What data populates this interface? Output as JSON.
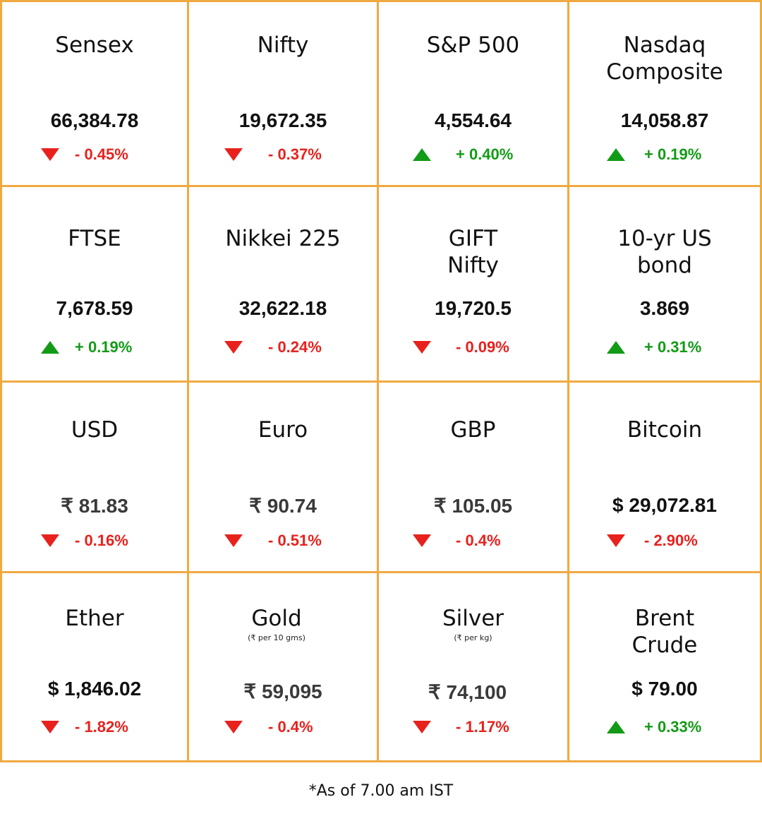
{
  "colors": {
    "border": "#f0a941",
    "down": "#e8211d",
    "up": "#129b16"
  },
  "tiles": [
    {
      "title": "Sensex",
      "value": "66,384.78",
      "change": "- 0.45%",
      "direction": "down"
    },
    {
      "title": "Nifty",
      "value": "19,672.35",
      "change": "- 0.37%",
      "direction": "down"
    },
    {
      "title": "S&P 500",
      "value": "4,554.64",
      "change": "+ 0.40%",
      "direction": "up"
    },
    {
      "title": "Nasdaq\nComposite",
      "value": "14,058.87",
      "change": "+ 0.19%",
      "direction": "up"
    },
    {
      "title": "FTSE",
      "value": "7,678.59",
      "change": "+ 0.19%",
      "direction": "up"
    },
    {
      "title": "Nikkei 225",
      "value": "32,622.18",
      "change": "- 0.24%",
      "direction": "down"
    },
    {
      "title": "GIFT\nNifty",
      "value": "19,720.5",
      "change": "- 0.09%",
      "direction": "down"
    },
    {
      "title": "10-yr US\nbond",
      "value": "3.869",
      "change": "+ 0.31%",
      "direction": "up"
    },
    {
      "title": "USD",
      "value": "₹ 81.83",
      "change": "- 0.16%",
      "direction": "down"
    },
    {
      "title": "Euro",
      "value": "₹ 90.74",
      "change": "- 0.51%",
      "direction": "down"
    },
    {
      "title": "GBP",
      "value": "₹ 105.05",
      "change": "- 0.4%",
      "direction": "down"
    },
    {
      "title": "Bitcoin",
      "value": "$ 29,072.81",
      "change": "- 2.90%",
      "direction": "down"
    },
    {
      "title": "Ether",
      "value": "$ 1,846.02",
      "change": "- 1.82%",
      "direction": "down"
    },
    {
      "title": "Gold",
      "subtitle": "(₹ per 10 gms)",
      "value": "₹ 59,095",
      "change": "- 0.4%",
      "direction": "down"
    },
    {
      "title": "Silver",
      "subtitle": "(₹ per kg)",
      "value": "₹ 74,100",
      "change": "- 1.17%",
      "direction": "down"
    },
    {
      "title": "Brent\nCrude",
      "value": "$ 79.00",
      "change": "+ 0.33%",
      "direction": "up"
    }
  ],
  "footnote": "*As of 7.00 am IST"
}
